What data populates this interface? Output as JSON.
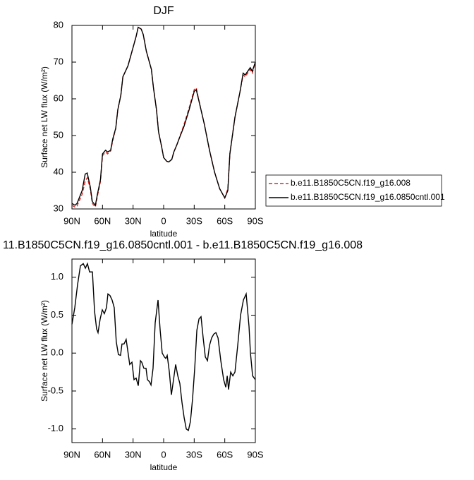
{
  "chart_data": [
    {
      "type": "line",
      "title": "DJF",
      "xlabel": "latitude",
      "ylabel": "Surface net LW flux (W/m²)",
      "x": [
        90,
        87,
        85,
        80,
        77,
        75,
        72,
        70,
        67,
        65,
        62,
        60,
        57,
        55,
        52,
        50,
        47,
        45,
        42,
        40,
        35,
        30,
        27,
        25,
        22,
        20,
        17,
        15,
        12,
        10,
        7,
        5,
        2,
        0,
        -3,
        -5,
        -8,
        -10,
        -13,
        -15,
        -20,
        -25,
        -30,
        -32,
        -35,
        -40,
        -45,
        -50,
        -55,
        -60,
        -63,
        -65,
        -70,
        -75,
        -78,
        -80,
        -85,
        -87,
        -90
      ],
      "series": [
        {
          "name": "b.e11.B1850C5CN.f19_g16.008",
          "color": "#e8231f",
          "dash": true,
          "values": [
            31,
            30.5,
            30.8,
            34,
            37.5,
            38.5,
            35.5,
            31.5,
            30.5,
            33.5,
            37.5,
            44.5,
            45.5,
            45,
            45.8,
            48.5,
            52,
            57,
            61,
            66,
            69,
            74,
            77,
            79.5,
            79,
            77.5,
            73,
            71,
            68,
            63,
            57,
            51,
            47,
            44,
            43,
            42.8,
            43.5,
            45.5,
            47.5,
            49,
            53,
            57.5,
            62.5,
            63,
            59,
            53,
            46,
            40,
            35.5,
            33,
            35.5,
            45,
            55,
            62,
            66.5,
            66,
            68,
            67,
            70
          ]
        },
        {
          "name": "b.e11.B1850C5CN.f19_g16.0850cntl.001",
          "color": "#000000",
          "dash": false,
          "values": [
            31.5,
            31,
            31.5,
            35,
            39.5,
            39.8,
            36,
            32,
            31,
            34,
            38,
            45,
            46,
            45.5,
            46,
            49,
            52,
            57,
            61,
            66,
            69,
            74,
            77,
            79.5,
            79,
            77.5,
            73,
            71,
            68,
            63,
            57,
            51,
            47,
            44,
            43,
            42.8,
            43.5,
            45.5,
            47.5,
            49,
            52.5,
            57,
            62,
            62.5,
            59,
            53,
            46,
            40,
            35.5,
            33,
            35,
            45,
            55,
            62,
            67,
            66.5,
            68.5,
            67.5,
            70
          ]
        }
      ],
      "xlim": [
        90,
        -90
      ],
      "xticks": [
        {
          "value": 90,
          "label": "90N"
        },
        {
          "value": 60,
          "label": "60N"
        },
        {
          "value": 30,
          "label": "30N"
        },
        0,
        {
          "value": -30,
          "label": "30S"
        },
        {
          "value": -60,
          "label": "60S"
        },
        {
          "value": -90,
          "label": "90S"
        }
      ],
      "ylim": [
        30,
        80
      ],
      "yticks": [
        30,
        40,
        50,
        60,
        70,
        80
      ],
      "legend": "right"
    },
    {
      "type": "line",
      "title": "11.B1850C5CN.f19_g16.0850cntl.001 - b.e11.B1850C5CN.f19_g16.008",
      "xlabel": "latitude",
      "ylabel": "Surface net LW flux (W/m²)",
      "x": [
        90,
        87.2,
        84.5,
        81.7,
        78.9,
        76.8,
        74.8,
        72.7,
        69.9,
        67.8,
        65.8,
        64.4,
        62.3,
        60.2,
        58.2,
        56.1,
        54.7,
        52.7,
        50.6,
        48.5,
        46.5,
        44.4,
        42.3,
        40.9,
        38.9,
        36.8,
        35.4,
        33.3,
        31.1,
        29.1,
        27,
        24.9,
        22.8,
        21.5,
        19.4,
        17.3,
        15.9,
        13.8,
        12.4,
        10.4,
        8.3,
        5.5,
        3.4,
        1.4,
        -0.7,
        -2.1,
        -3.5,
        -5.6,
        -7.6,
        -9.7,
        -11.8,
        -13.9,
        -15.9,
        -18,
        -20.1,
        -22.2,
        -24.3,
        -26.3,
        -28.4,
        -30.5,
        -32.6,
        -34.7,
        -36.7,
        -38.8,
        -40.9,
        -43,
        -45,
        -47.1,
        -49.2,
        -51.3,
        -53.4,
        -56.1,
        -58.9,
        -61,
        -62.4,
        -63.7,
        -65.8,
        -67.9,
        -70,
        -72.7,
        -75.5,
        -78.3,
        -81,
        -83.8,
        -85.2,
        -87.3,
        -90
      ],
      "values": [
        0.38,
        0.6,
        0.9,
        1.15,
        1.18,
        1.12,
        1.18,
        1.07,
        1.07,
        0.55,
        0.32,
        0.27,
        0.45,
        0.57,
        0.52,
        0.6,
        0.78,
        0.76,
        0.7,
        0.6,
        0.15,
        -0.02,
        -0.03,
        0.12,
        0.12,
        0.18,
        0.05,
        -0.15,
        -0.12,
        -0.35,
        -0.33,
        -0.43,
        -0.1,
        -0.12,
        -0.2,
        -0.2,
        -0.35,
        -0.38,
        -0.42,
        -0.2,
        0.4,
        0.7,
        0.3,
        0,
        -0.05,
        -0.07,
        -0.03,
        -0.25,
        -0.55,
        -0.35,
        -0.15,
        -0.3,
        -0.4,
        -0.65,
        -0.85,
        -1.0,
        -1.02,
        -0.9,
        -0.6,
        -0.2,
        0.3,
        0.45,
        0.48,
        0.2,
        -0.05,
        -0.1,
        0.1,
        0.2,
        0.25,
        0.27,
        0.2,
        -0.1,
        -0.35,
        -0.45,
        -0.3,
        -0.48,
        -0.25,
        -0.3,
        -0.25,
        0.1,
        0.5,
        0.7,
        0.78,
        0.35,
        0,
        -0.3,
        -0.35
      ],
      "color": "#000000",
      "xlim": [
        90,
        -90
      ],
      "xticks": [
        {
          "value": 90,
          "label": "90N"
        },
        {
          "value": 60,
          "label": "60N"
        },
        {
          "value": 30,
          "label": "30N"
        },
        0,
        {
          "value": -30,
          "label": "30S"
        },
        {
          "value": -60,
          "label": "60S"
        },
        {
          "value": -90,
          "label": "90S"
        }
      ],
      "ylim": [
        -1.18,
        1.24
      ],
      "yticks": [
        {
          "value": -1,
          "label": "-1.0"
        },
        -0.5,
        {
          "value": 0,
          "label": "0.0"
        },
        0.5,
        {
          "value": 1,
          "label": "1.0"
        }
      ]
    }
  ]
}
